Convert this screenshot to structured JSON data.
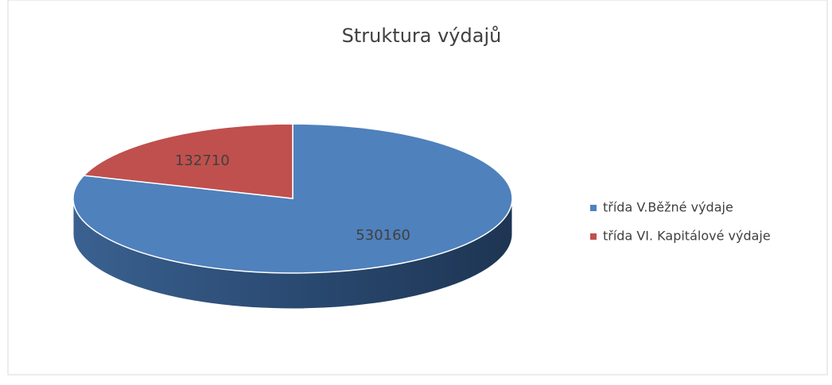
{
  "chart_data": {
    "type": "pie",
    "title": "Struktura výdajů",
    "categories": [
      "třída V.Běžné výdaje",
      "třída VI. Kapitálové výdaje"
    ],
    "values": [
      530160,
      132710
    ],
    "colors": [
      "#4f81bd",
      "#c0504d"
    ],
    "legend": "right"
  }
}
